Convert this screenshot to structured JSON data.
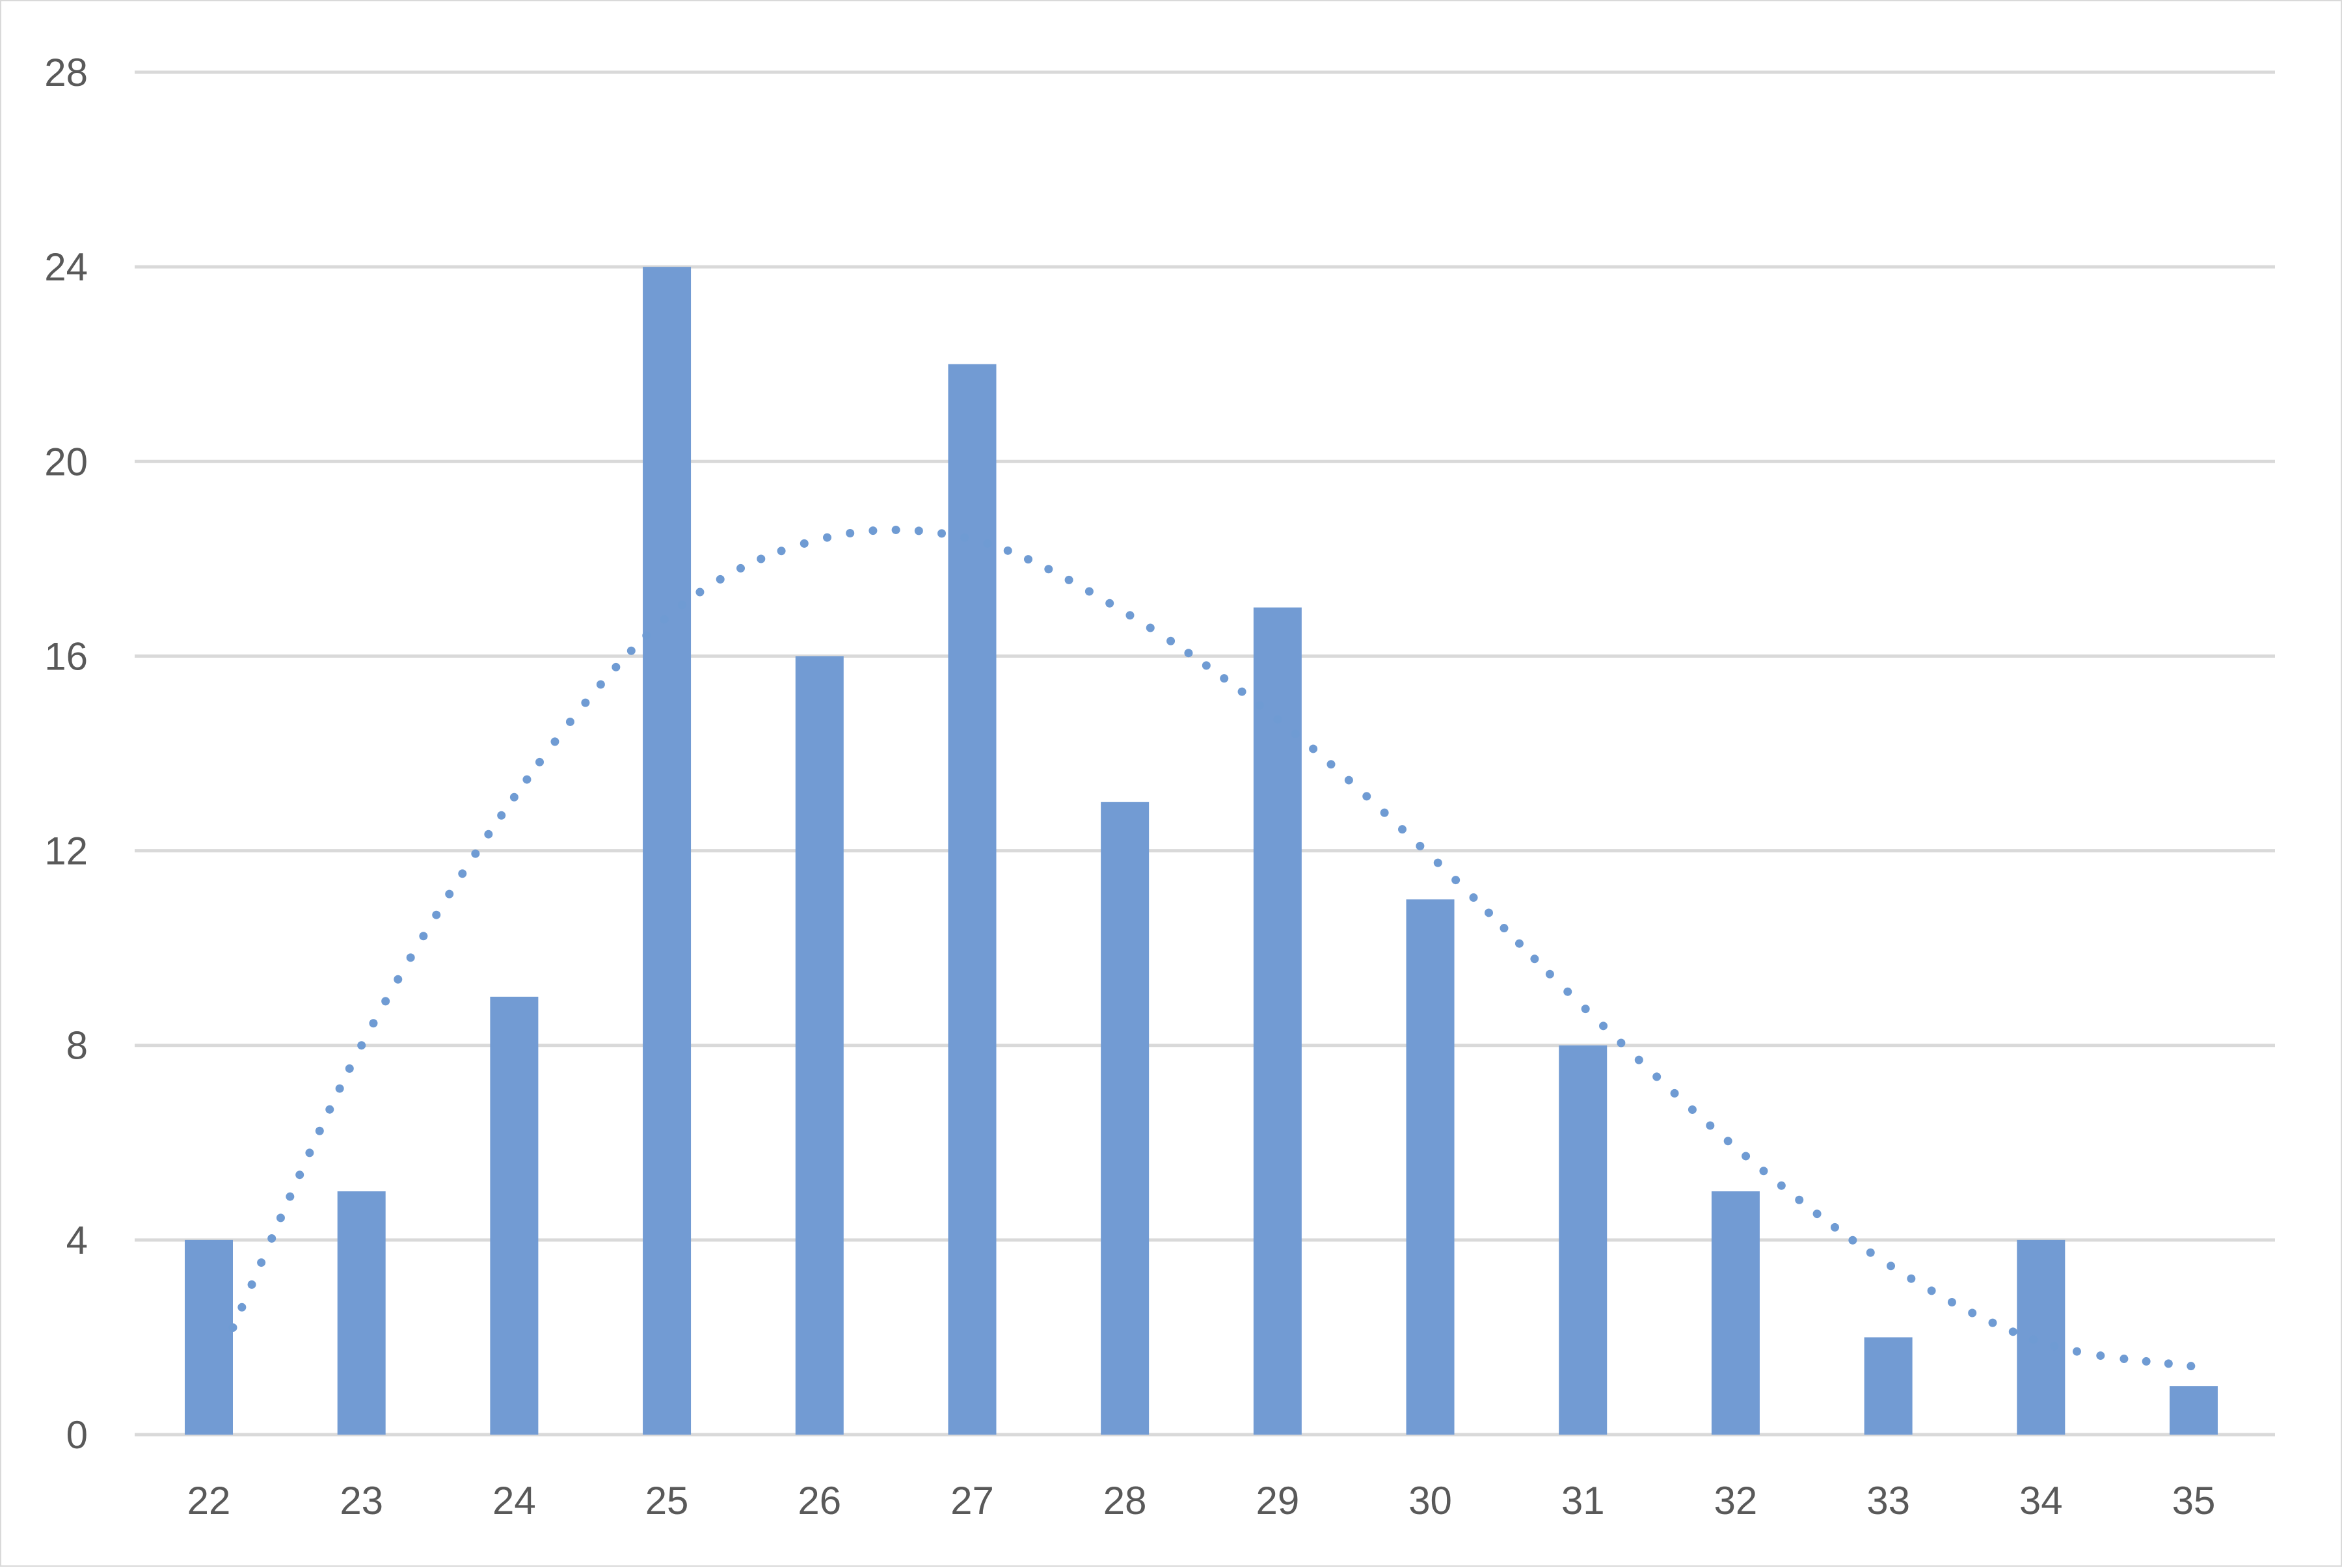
{
  "chart_data": {
    "type": "bar",
    "title": "",
    "xlabel": "",
    "ylabel": "",
    "categories": [
      "22",
      "23",
      "24",
      "25",
      "26",
      "27",
      "28",
      "29",
      "30",
      "31",
      "32",
      "33",
      "34",
      "35"
    ],
    "series": [
      {
        "values": [
          4,
          5,
          9,
          24,
          16,
          22,
          13,
          17,
          11,
          8,
          5,
          2,
          4,
          1
        ],
        "color": "#729bd3"
      }
    ],
    "trendline": {
      "style": "dotted",
      "color": "#6f9bd3",
      "values": [
        2.2,
        8.0,
        13.1,
        16.8,
        18.4,
        18.4,
        16.9,
        14.7,
        11.9,
        8.8,
        5.9,
        3.5,
        1.9,
        1.4
      ]
    },
    "ylim": [
      0,
      28
    ],
    "yticks": [
      0,
      4,
      8,
      12,
      16,
      20,
      24,
      28
    ],
    "grid": true,
    "legend": "none"
  }
}
